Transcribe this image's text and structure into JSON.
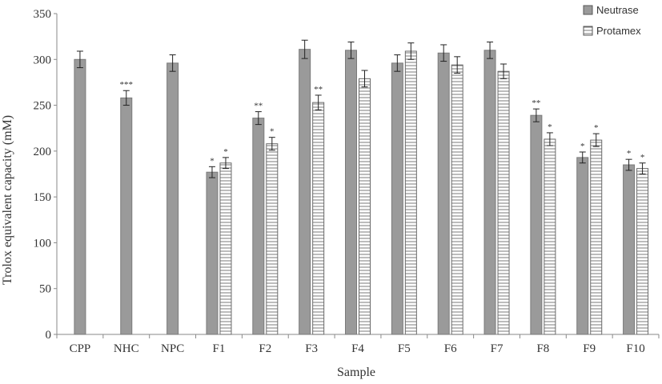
{
  "chart_data": {
    "type": "bar",
    "xlabel": "Sample",
    "ylabel": "Trolox equivalent capacity (mM)",
    "ylim": [
      0,
      350
    ],
    "yticks": [
      0,
      50,
      100,
      150,
      200,
      250,
      300,
      350
    ],
    "categories": [
      "CPP",
      "NHC",
      "NPC",
      "F1",
      "F2",
      "F3",
      "F4",
      "F5",
      "F6",
      "F7",
      "F8",
      "F9",
      "F10"
    ],
    "legend_position": "top-right",
    "grid": false,
    "series": [
      {
        "name": "Neutrase",
        "color": "#9a9a9a",
        "pattern": "solid",
        "values": [
          300,
          258,
          296,
          177,
          236,
          311,
          310,
          296,
          307,
          310,
          239,
          193,
          185
        ],
        "errors": [
          9,
          8,
          9,
          6,
          7,
          10,
          9,
          9,
          9,
          9,
          7,
          6,
          6
        ],
        "labels": [
          "",
          "***",
          "",
          "*",
          "**",
          "",
          "",
          "",
          "",
          "",
          "**",
          "*",
          "*"
        ]
      },
      {
        "name": "Protamex",
        "color": "#ffffff",
        "pattern": "horizontal-stripes",
        "values": [
          null,
          null,
          null,
          187,
          208,
          253,
          279,
          309,
          294,
          287,
          213,
          212,
          181
        ],
        "errors": [
          null,
          null,
          null,
          6,
          7,
          8,
          9,
          9,
          9,
          8,
          7,
          7,
          6
        ],
        "labels": [
          "",
          "",
          "",
          "*",
          "*",
          "**",
          "",
          "",
          "",
          "",
          "*",
          "*",
          "*"
        ]
      }
    ]
  }
}
